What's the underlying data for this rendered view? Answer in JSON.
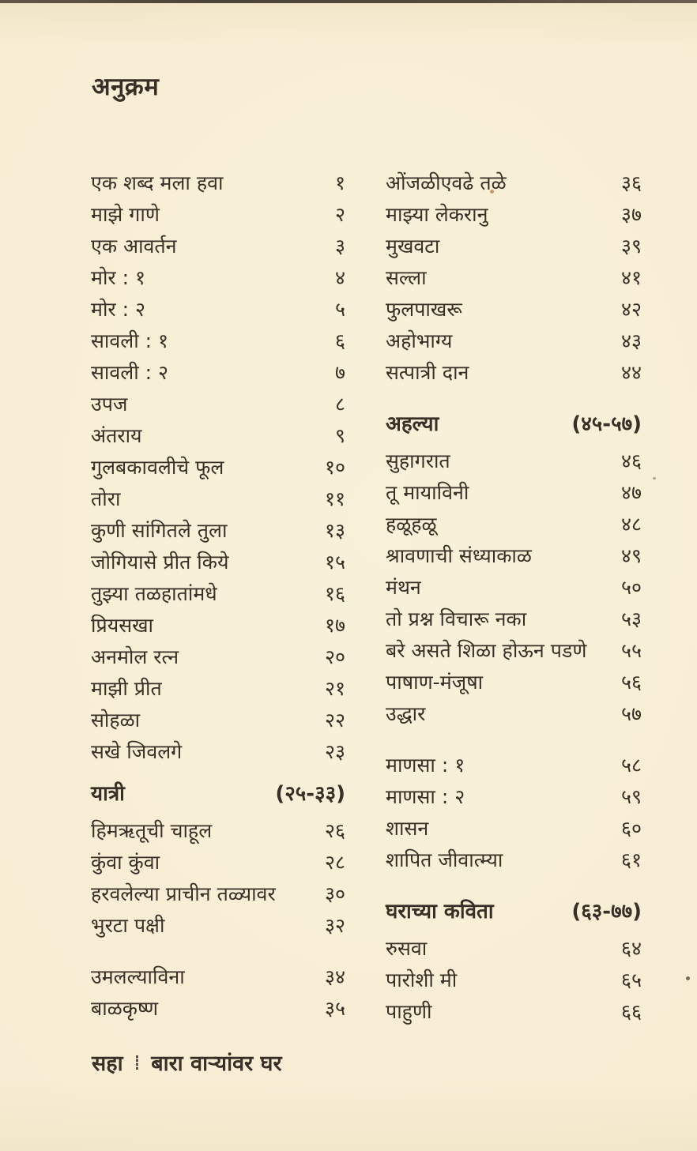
{
  "page": {
    "heading": "अनुक्रम",
    "footer": {
      "page_label": "सहा",
      "separator": "⁞",
      "book_title": "बारा वाऱ्यांवर घर"
    }
  },
  "colors": {
    "paper": "#f7edd3",
    "ink": "#3a2f26"
  },
  "columns": {
    "left": [
      {
        "title": "एक शब्द मला हवा",
        "page": "१"
      },
      {
        "title": "माझे गाणे",
        "page": "२"
      },
      {
        "title": "एक आवर्तन",
        "page": "३"
      },
      {
        "title": "मोर : १",
        "page": "४"
      },
      {
        "title": "मोर : २",
        "page": "५"
      },
      {
        "title": "सावली : १",
        "page": "६"
      },
      {
        "title": "सावली : २",
        "page": "७"
      },
      {
        "title": "उपज",
        "page": "८"
      },
      {
        "title": "अंतराय",
        "page": "९"
      },
      {
        "title": "गुलबकावलीचे फूल",
        "page": "१०"
      },
      {
        "title": "तोरा",
        "page": "११"
      },
      {
        "title": "कुणी सांगितले तुला",
        "page": "१३"
      },
      {
        "title": "जोगियासे प्रीत किये",
        "page": "१५"
      },
      {
        "title": "तुझ्या तळहातांमधे",
        "page": "१६"
      },
      {
        "title": "प्रियसखा",
        "page": "१७"
      },
      {
        "title": "अनमोल रत्न",
        "page": "२०"
      },
      {
        "title": "माझी प्रीत",
        "page": "२१"
      },
      {
        "title": "सोहळा",
        "page": "२२"
      },
      {
        "title": "सखे जिवलगे",
        "page": "२३"
      },
      {
        "title": "यात्री",
        "page": "(२५-३३)",
        "heading": true
      },
      {
        "title": "हिमऋतूची चाहूल",
        "page": "२६"
      },
      {
        "title": "कुंवा कुंवा",
        "page": "२८"
      },
      {
        "title": "हरवलेल्या प्राचीन तळ्यावर",
        "page": "३०"
      },
      {
        "title": "भुरटा पक्षी",
        "page": "३२"
      },
      {
        "title": "उमलल्याविना",
        "page": "३४",
        "gap": true
      },
      {
        "title": "बाळकृष्ण",
        "page": "३५"
      }
    ],
    "right": [
      {
        "title": "ओंजळीएवढे तळे",
        "page": "३६"
      },
      {
        "title": "माझ्या लेकरानु",
        "page": "३७"
      },
      {
        "title": "मुखवटा",
        "page": "३९"
      },
      {
        "title": "सल्ला",
        "page": "४१"
      },
      {
        "title": "फुलपाखरू",
        "page": "४२"
      },
      {
        "title": "अहोभाग्य",
        "page": "४३"
      },
      {
        "title": "सत्पात्री दान",
        "page": "४४"
      },
      {
        "title": "अहल्या",
        "page": "(४५-५७)",
        "heading": true,
        "gap": true
      },
      {
        "title": "सुहागरात",
        "page": "४६"
      },
      {
        "title": "तू मायाविनी",
        "page": "४७"
      },
      {
        "title": "हळूहळू",
        "page": "४८"
      },
      {
        "title": "श्रावणाची संध्याकाळ",
        "page": "४९"
      },
      {
        "title": "मंथन",
        "page": "५०"
      },
      {
        "title": "तो प्रश्न विचारू नका",
        "page": "५३"
      },
      {
        "title": "बरे असते शिळा होऊन पडणे",
        "page": "५५"
      },
      {
        "title": "पाषाण-मंजूषा",
        "page": "५६"
      },
      {
        "title": "उद्धार",
        "page": "५७"
      },
      {
        "title": "माणसा : १",
        "page": "५८",
        "gap": true
      },
      {
        "title": "माणसा : २",
        "page": "५९"
      },
      {
        "title": "शासन",
        "page": "६०"
      },
      {
        "title": "शापित जीवात्म्या",
        "page": "६१"
      },
      {
        "title": "घराच्या कविता",
        "page": "(६३-७७)",
        "heading": true,
        "gap": true
      },
      {
        "title": "रुसवा",
        "page": "६४"
      },
      {
        "title": "पारोशी मी",
        "page": "६५"
      },
      {
        "title": "पाहुणी",
        "page": "६६"
      }
    ]
  }
}
